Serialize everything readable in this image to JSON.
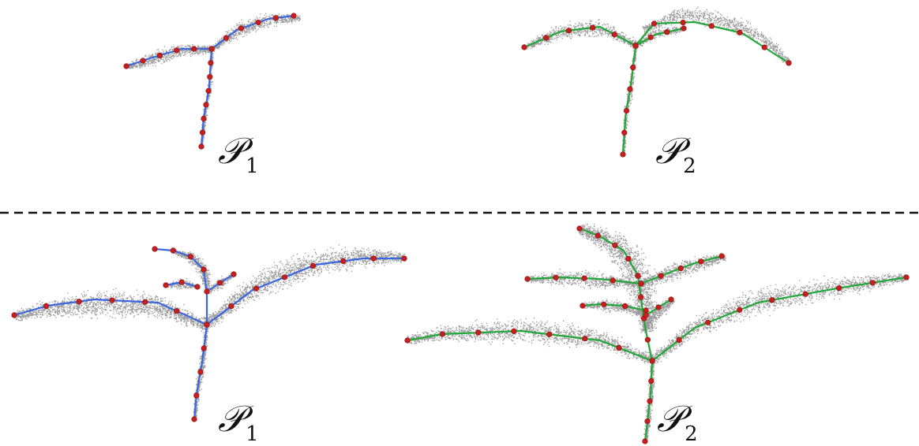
{
  "labels": {
    "top_left": {
      "letter": "𝒫",
      "sub": "1"
    },
    "top_right": {
      "letter": "𝒫",
      "sub": "2"
    },
    "bottom_left": {
      "letter": "𝒫",
      "sub": "1"
    },
    "bottom_right": {
      "letter": "𝒫",
      "sub": "2"
    }
  },
  "colors": {
    "skeleton_p1": "#3a66e0",
    "skeleton_p2": "#22a83a",
    "node": "#c81e1e",
    "point_cloud": "#9a9a9a",
    "divider": "#111111"
  }
}
